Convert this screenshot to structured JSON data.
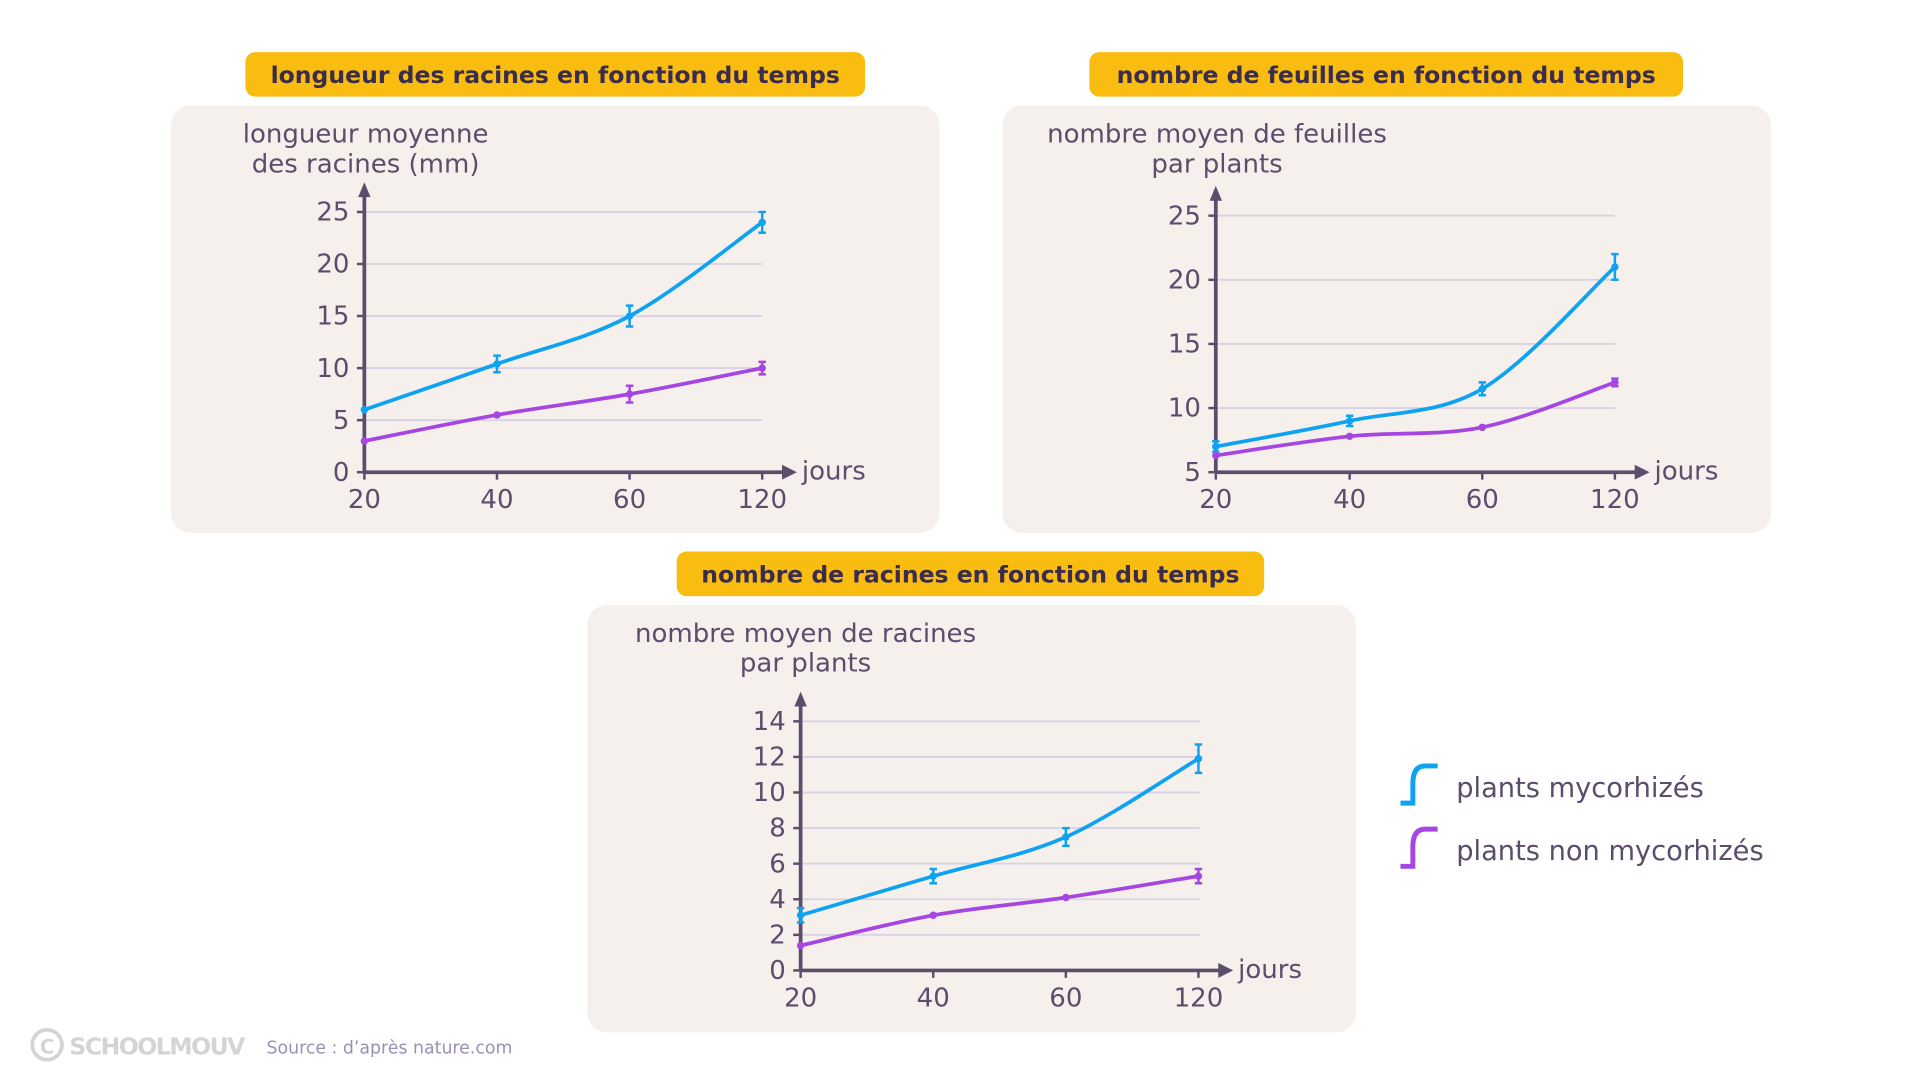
{
  "colors": {
    "mycorhizes": "#0ea2f2",
    "non_mycorhizes": "#a646e2",
    "axis": "#5b4d6b",
    "panel": "#f5f0ec",
    "title_bg": "#f9bc10",
    "grid": "#d9d2e6"
  },
  "legend": [
    {
      "label": "plants mycorhizés",
      "icon": "curve-blue-icon"
    },
    {
      "label": "plants non mycorhizés",
      "icon": "curve-purple-icon"
    }
  ],
  "footer": {
    "logo": "SCHOOLMOUV",
    "source": "Source : d’après nature.com"
  },
  "chart_data": [
    {
      "type": "line",
      "title": "longueur des racines en fonction du temps",
      "ylabel": [
        "longueur moyenne",
        "des racines (mm)"
      ],
      "xlabel": "jours",
      "categories": [
        "20",
        "40",
        "60",
        "120"
      ],
      "ylim": [
        0,
        25
      ],
      "yticks": [
        "0",
        "5",
        "10",
        "15",
        "20",
        "25"
      ],
      "series": [
        {
          "name": "plants mycorhizés",
          "values": [
            6,
            10.4,
            15,
            24
          ],
          "errors": [
            0,
            0.8,
            1,
            1
          ]
        },
        {
          "name": "plants non mycorhizés",
          "values": [
            3,
            5.5,
            7.5,
            10
          ],
          "errors": [
            0,
            0,
            0.8,
            0.6
          ]
        }
      ]
    },
    {
      "type": "line",
      "title": "nombre de feuilles en fonction du temps",
      "ylabel": [
        "nombre moyen de feuilles",
        "par plants"
      ],
      "xlabel": "jours",
      "categories": [
        "20",
        "40",
        "60",
        "120"
      ],
      "ylim": [
        5,
        25
      ],
      "yticks": [
        "5",
        "10",
        "15",
        "20",
        "25"
      ],
      "series": [
        {
          "name": "plants mycorhizés",
          "values": [
            7,
            9,
            11.5,
            21
          ],
          "errors": [
            0.4,
            0.4,
            0.5,
            1
          ]
        },
        {
          "name": "plants non mycorhizés",
          "values": [
            6.3,
            7.8,
            8.5,
            12
          ],
          "errors": [
            0,
            0,
            0,
            0.3
          ]
        }
      ]
    },
    {
      "type": "line",
      "title": "nombre de racines en fonction du temps",
      "ylabel": [
        "nombre moyen de racines",
        "par plants"
      ],
      "xlabel": "jours",
      "categories": [
        "20",
        "40",
        "60",
        "120"
      ],
      "ylim": [
        0,
        14
      ],
      "yticks": [
        "0",
        "2",
        "4",
        "6",
        "8",
        "10",
        "12",
        "14"
      ],
      "series": [
        {
          "name": "plants mycorhizés",
          "values": [
            3.1,
            5.3,
            7.5,
            11.9
          ],
          "errors": [
            0.4,
            0.4,
            0.5,
            0.8
          ]
        },
        {
          "name": "plants non mycorhizés",
          "values": [
            1.4,
            3.1,
            4.1,
            5.3
          ],
          "errors": [
            0,
            0,
            0,
            0.4
          ]
        }
      ]
    }
  ]
}
